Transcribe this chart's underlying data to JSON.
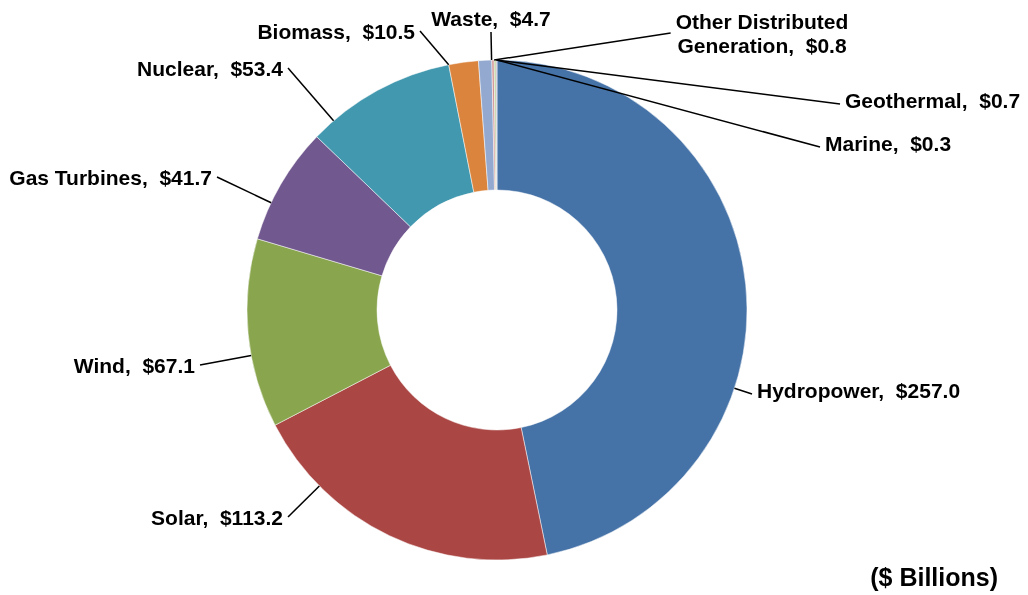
{
  "chart_data": {
    "type": "donut",
    "categories": [
      "Hydropower",
      "Solar",
      "Wind",
      "Gas Turbines",
      "Nuclear",
      "Biomass",
      "Waste",
      "Other Distributed Generation",
      "Geothermal",
      "Marine"
    ],
    "values": [
      257.0,
      113.2,
      67.1,
      41.7,
      53.4,
      10.5,
      4.7,
      0.8,
      0.7,
      0.3
    ],
    "colors": [
      "#4572a7",
      "#aa4643",
      "#89a54e",
      "#71588f",
      "#4198af",
      "#db843d",
      "#93a9cf",
      "#d19392",
      "#b9cd96",
      "#a99bbd"
    ],
    "value_labels": [
      "$257.0",
      "$113.2",
      "$67.1",
      "$41.7",
      "$53.4",
      "$10.5",
      "$4.7",
      "$0.8",
      "$0.7",
      "$0.3"
    ],
    "annotations": [
      "($ Billions)"
    ]
  }
}
